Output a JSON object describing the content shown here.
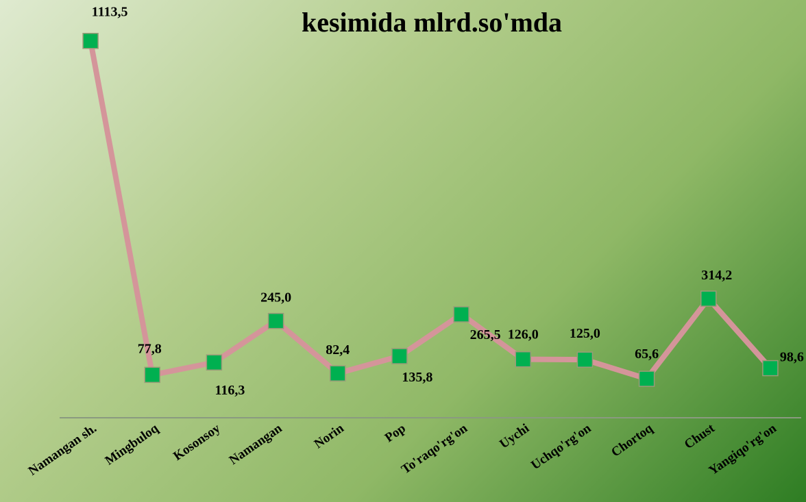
{
  "chart_data": {
    "type": "line",
    "title": "kesimida  mlrd.so'mda",
    "categories": [
      "Namangan sh.",
      "Mingbuloq",
      "Kosonsoy",
      "Namangan",
      "Norin",
      "Pop",
      "To'raqo'rg'on",
      "Uychi",
      "Uchqo'rg'on",
      "Chortoq",
      "Chust",
      "Yangiqo'rg'on"
    ],
    "series": [
      {
        "name": null,
        "color": "#d4959a",
        "marker_color": "#00b050",
        "values": [
          1113.5,
          77.8,
          116.3,
          245.0,
          82.4,
          135.8,
          265.5,
          126.0,
          125.0,
          65.6,
          314.2,
          98.6
        ],
        "value_labels": [
          "1113,5",
          "77,8",
          "116,3",
          "245,0",
          "82,4",
          "135,8",
          "265,5",
          "126,0",
          "125,0",
          "65,6",
          "314,2",
          "98,6"
        ]
      }
    ],
    "ylim": [
      0,
      1200
    ],
    "grid": false
  }
}
